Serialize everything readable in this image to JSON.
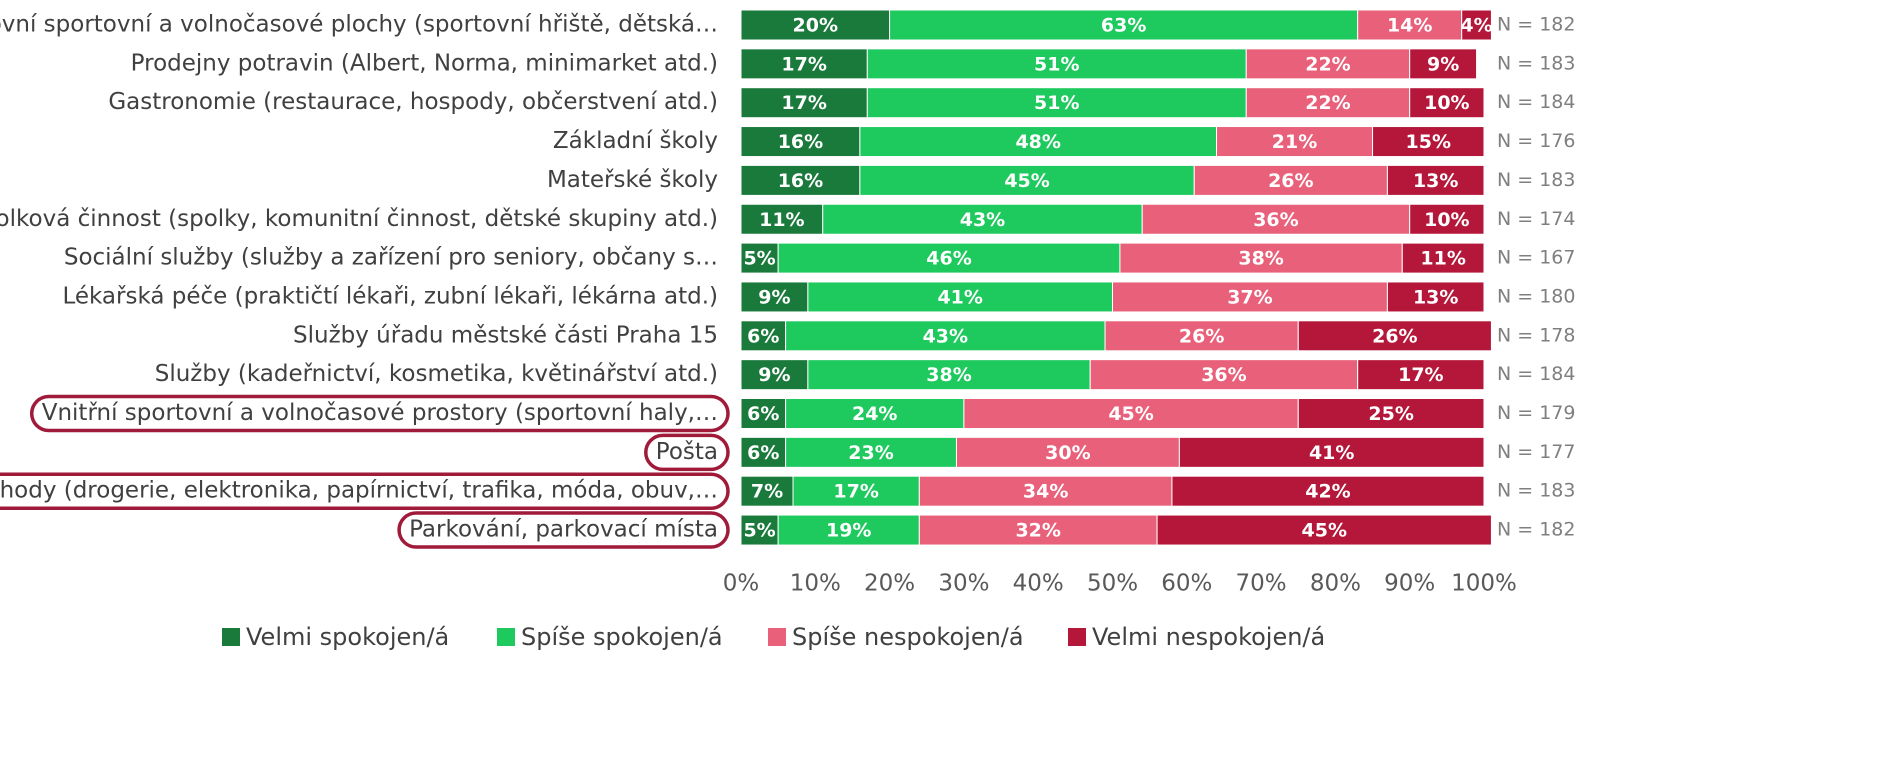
{
  "chart_data": {
    "type": "stacked_barh",
    "categories": [
      "Venkovní sportovní a volnočasové plochy (sportovní hřiště, dětská…",
      "Prodejny potravin (Albert, Norma, minimarket atd.)",
      "Gastronomie (restaurace, hospody, občerstvení atd.)",
      "Základní školy",
      "Mateřské školy",
      "Spolková činnost (spolky, komunitní činnost, dětské skupiny atd.)",
      "Sociální služby (služby a zařízení pro seniory, občany s…",
      "Lékařská péče (praktičtí lékaři, zubní lékaři, lékárna atd.)",
      "Služby úřadu městské části Praha 15",
      "Služby (kadeřnictví, kosmetika, květinářství atd.)",
      "Vnitřní sportovní a volnočasové prostory (sportovní haly,…",
      "Pošta",
      "Obchody (drogerie, elektronika, papírnictví, trafika, móda, obuv,…",
      "Parkování, parkovací místa"
    ],
    "series": [
      {
        "name": "Velmi spokojen/á",
        "color": "#1a7a3c",
        "values": [
          20,
          17,
          17,
          16,
          16,
          11,
          5,
          9,
          6,
          9,
          6,
          6,
          7,
          5
        ],
        "value_labels": [
          "20%",
          "17%",
          "17%",
          "16%",
          "16%",
          "11%",
          "5%",
          "9%",
          "6%",
          "9%",
          "6%",
          "6%",
          "7%",
          "5%"
        ]
      },
      {
        "name": "Spíše spokojen/á",
        "color": "#1ec95e",
        "values": [
          63,
          51,
          51,
          48,
          45,
          43,
          46,
          41,
          43,
          38,
          24,
          23,
          17,
          19
        ],
        "value_labels": [
          "63%",
          "51%",
          "51%",
          "48%",
          "45%",
          "43%",
          "46%",
          "41%",
          "43%",
          "38%",
          "24%",
          "23%",
          "17%",
          "19%"
        ]
      },
      {
        "name": "Spíše nespokojen/á",
        "color": "#e8607a",
        "values": [
          14,
          22,
          22,
          21,
          26,
          36,
          38,
          37,
          26,
          36,
          45,
          30,
          34,
          32
        ],
        "value_labels": [
          "14%",
          "22%",
          "22%",
          "21%",
          "26%",
          "36%",
          "38%",
          "37%",
          "26%",
          "36%",
          "45%",
          "30%",
          "34%",
          "32%"
        ]
      },
      {
        "name": "Velmi nespokojen/á",
        "color": "#b5173a",
        "values": [
          4,
          9,
          10,
          15,
          13,
          10,
          11,
          13,
          26,
          17,
          25,
          41,
          42,
          45
        ],
        "value_labels": [
          "4%",
          "9%",
          "10%",
          "15%",
          "13%",
          "10%",
          "11%",
          "13%",
          "26%",
          "17%",
          "25%",
          "41%",
          "42%",
          "45%"
        ]
      }
    ],
    "annotations": [
      "N = 182",
      "N = 183",
      "N = 184",
      "N = 176",
      "N = 183",
      "N = 174",
      "N = 167",
      "N = 180",
      "N = 178",
      "N = 184",
      "N = 179",
      "N = 177",
      "N = 183",
      "N = 182"
    ],
    "xlim": [
      0,
      100
    ],
    "xticks": [
      {
        "value": 0,
        "label": "0%"
      },
      {
        "value": 10,
        "label": "10%"
      },
      {
        "value": 20,
        "label": "20%"
      },
      {
        "value": 30,
        "label": "30%"
      },
      {
        "value": 40,
        "label": "40%"
      },
      {
        "value": 50,
        "label": "50%"
      },
      {
        "value": 60,
        "label": "60%"
      },
      {
        "value": 70,
        "label": "70%"
      },
      {
        "value": 80,
        "label": "80%"
      },
      {
        "value": 90,
        "label": "90%"
      },
      {
        "value": 100,
        "label": "100%"
      }
    ],
    "highlight": [
      10,
      11,
      12,
      13
    ],
    "highlight_color": "#a01a3a"
  }
}
